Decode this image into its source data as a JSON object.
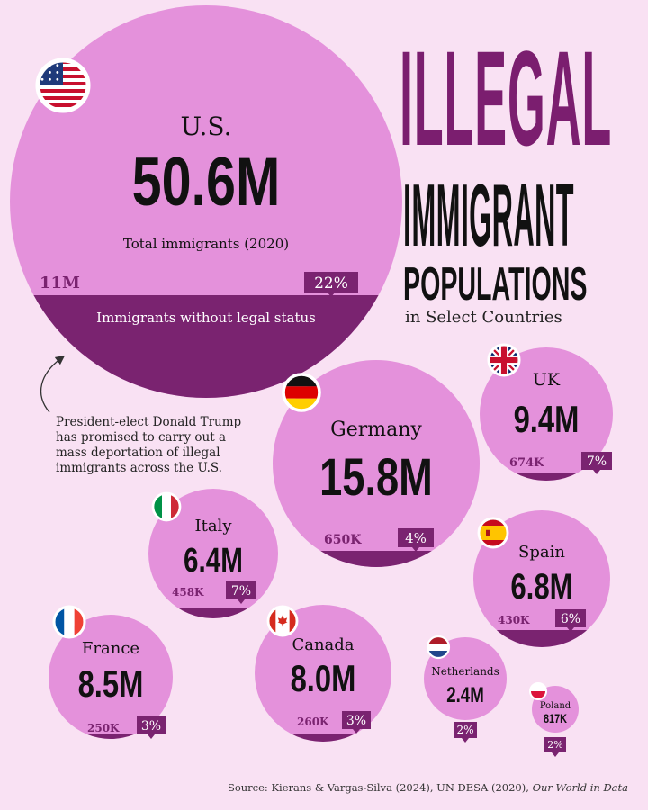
{
  "title": {
    "line1": "ILLEGAL",
    "line2": "IMMIGRANT",
    "line3": "POPULATIONS",
    "subtitle": "in Select Countries"
  },
  "note": "President-elect Donald Trump has promised to carry out a mass deportation of illegal immigrants across the U.S.",
  "source": {
    "prefix": "Source: Kierans & Vargas-Silva (2024), UN DESA (2020), ",
    "italic": "Our World in Data"
  },
  "colors": {
    "background": "#f9e1f3",
    "bubble": "#e491db",
    "bubble_dark": "#7a2370",
    "title_purple": "#7b1e6f",
    "text": "#111111"
  },
  "chart_data": {
    "type": "bubble",
    "title": "ILLEGAL IMMIGRANT POPULATIONS in Select Countries",
    "total_label": "Total immigrants (2020)",
    "illegal_label": "Immigrants without legal status",
    "countries": [
      {
        "name": "U.S.",
        "flag": "us-flag-icon",
        "total": "50.6M",
        "total_value_m": 50.6,
        "illegal": "11M",
        "illegal_value_m": 11,
        "share": "22%",
        "share_value": 22
      },
      {
        "name": "Germany",
        "flag": "germany-flag-icon",
        "total": "15.8M",
        "total_value_m": 15.8,
        "illegal": "650K",
        "illegal_value_m": 0.65,
        "share": "4%",
        "share_value": 4
      },
      {
        "name": "UK",
        "flag": "uk-flag-icon",
        "total": "9.4M",
        "total_value_m": 9.4,
        "illegal": "674K",
        "illegal_value_m": 0.674,
        "share": "7%",
        "share_value": 7
      },
      {
        "name": "Italy",
        "flag": "italy-flag-icon",
        "total": "6.4M",
        "total_value_m": 6.4,
        "illegal": "458K",
        "illegal_value_m": 0.458,
        "share": "7%",
        "share_value": 7
      },
      {
        "name": "Spain",
        "flag": "spain-flag-icon",
        "total": "6.8M",
        "total_value_m": 6.8,
        "illegal": "430K",
        "illegal_value_m": 0.43,
        "share": "6%",
        "share_value": 6
      },
      {
        "name": "France",
        "flag": "france-flag-icon",
        "total": "8.5M",
        "total_value_m": 8.5,
        "illegal": "250K",
        "illegal_value_m": 0.25,
        "share": "3%",
        "share_value": 3
      },
      {
        "name": "Canada",
        "flag": "canada-flag-icon",
        "total": "8.0M",
        "total_value_m": 8.0,
        "illegal": "260K",
        "illegal_value_m": 0.26,
        "share": "3%",
        "share_value": 3
      },
      {
        "name": "Netherlands",
        "flag": "netherlands-flag-icon",
        "total": "2.4M",
        "total_value_m": 2.4,
        "illegal": "",
        "illegal_value_m": null,
        "share": "2%",
        "share_value": 2
      },
      {
        "name": "Poland",
        "flag": "poland-flag-icon",
        "total": "817K",
        "total_value_m": 0.817,
        "illegal": "",
        "illegal_value_m": null,
        "share": "2%",
        "share_value": 2
      }
    ]
  }
}
